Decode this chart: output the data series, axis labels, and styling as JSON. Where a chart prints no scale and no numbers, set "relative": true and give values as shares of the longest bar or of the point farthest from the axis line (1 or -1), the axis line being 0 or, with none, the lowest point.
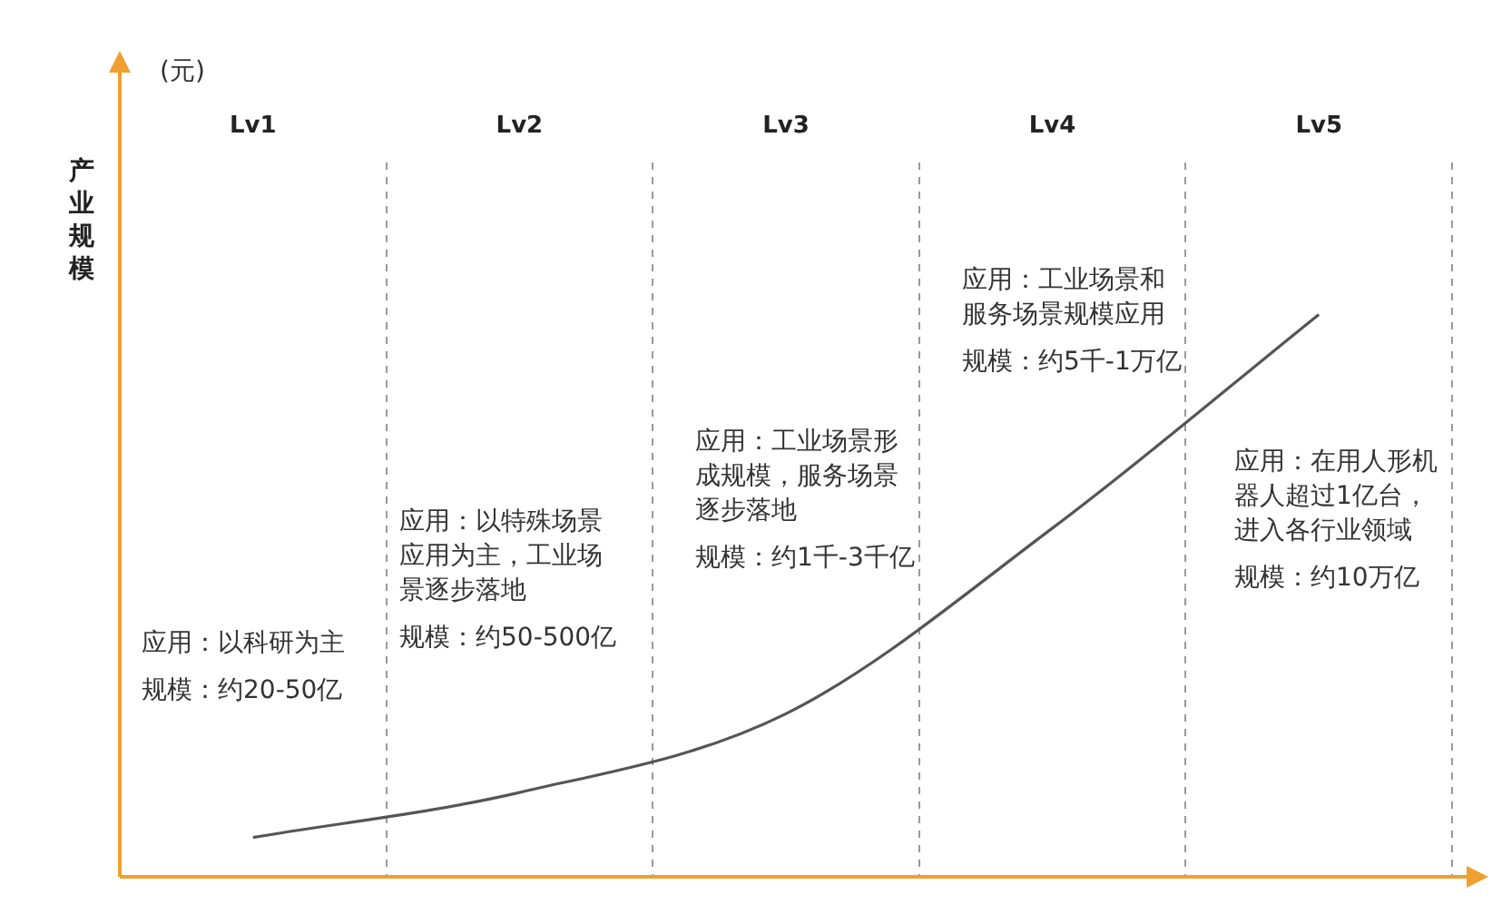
{
  "chart_data": {
    "type": "line",
    "relative": true,
    "ylabel": "产业规模",
    "categories": [
      "Lv1",
      "Lv2",
      "Lv3",
      "Lv4",
      "Lv5"
    ],
    "series": [
      {
        "color": "#555555",
        "values": [
          0.07,
          0.15,
          0.29,
          0.62,
          1
        ]
      }
    ],
    "grid": "x",
    "marker": "none",
    "line_style": "solid",
    "legend": false,
    "annotations": [
      "(元)",
      "应用：以科研为主",
      "规模：约20-50亿",
      "应用：以特殊场景应用为主，工业场景逐步落地",
      "规模：约50-500亿",
      "应用：工业场景形成规模，服务场景逐步落地",
      "规模：约1千-3千亿",
      "应用：工业场景和服务场景规模应用",
      "规模：约5千-1万亿",
      "应用：在用人形机器人超过1亿台，进入各行业领域",
      "规模：约10万亿"
    ]
  }
}
